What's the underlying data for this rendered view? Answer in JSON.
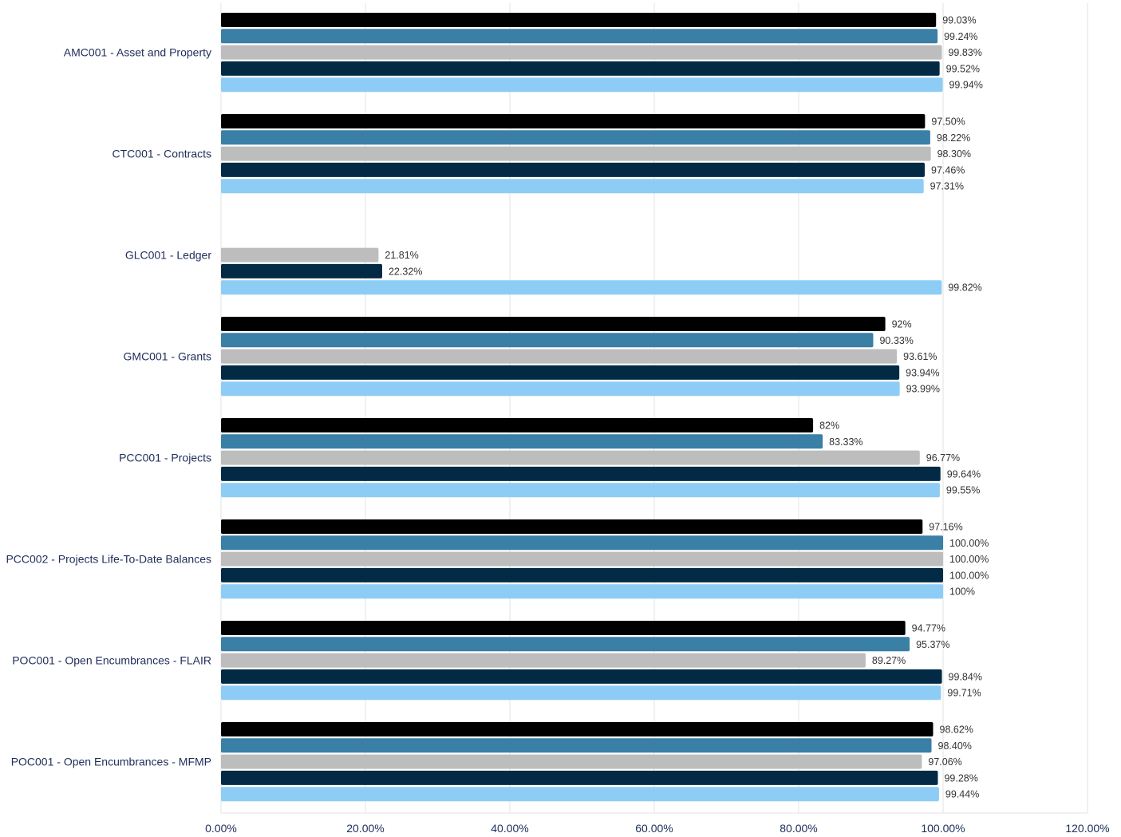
{
  "chart_data": {
    "type": "bar",
    "orientation": "horizontal",
    "categories": [
      "AMC001 - Asset and Property",
      "CTC001 - Contracts",
      "GLC001 - Ledger",
      "GMC001 - Grants",
      "PCC001 - Projects",
      "PCC002 - Projects Life-To-Date Balances",
      "POC001 - Open Encumbrances - FLAIR",
      "POC001 - Open Encumbrances - MFMP"
    ],
    "series": [
      {
        "color": "#000000",
        "values": [
          99.03,
          97.5,
          null,
          92,
          82,
          97.16,
          94.77,
          98.62
        ],
        "labels": [
          "99.03%",
          "97.50%",
          "",
          "92%",
          "82%",
          "97.16%",
          "94.77%",
          "98.62%"
        ]
      },
      {
        "color": "#3a7fa6",
        "values": [
          99.24,
          98.22,
          null,
          90.33,
          83.33,
          100.0,
          95.37,
          98.4
        ],
        "labels": [
          "99.24%",
          "98.22%",
          "",
          "90.33%",
          "83.33%",
          "100.00%",
          "95.37%",
          "98.40%"
        ]
      },
      {
        "color": "#bdbdbd",
        "values": [
          99.83,
          98.3,
          21.81,
          93.61,
          96.77,
          100.0,
          89.27,
          97.06
        ],
        "labels": [
          "99.83%",
          "98.30%",
          "21.81%",
          "93.61%",
          "96.77%",
          "100.00%",
          "89.27%",
          "97.06%"
        ]
      },
      {
        "color": "#032a45",
        "values": [
          99.52,
          97.46,
          22.32,
          93.94,
          99.64,
          100.0,
          99.84,
          99.28
        ],
        "labels": [
          "99.52%",
          "97.46%",
          "22.32%",
          "93.94%",
          "99.64%",
          "100.00%",
          "99.84%",
          "99.28%"
        ]
      },
      {
        "color": "#8dcdf5",
        "values": [
          99.94,
          97.31,
          99.82,
          93.99,
          99.55,
          100,
          99.71,
          99.44
        ],
        "labels": [
          "99.94%",
          "97.31%",
          "99.82%",
          "93.99%",
          "99.55%",
          "100%",
          "99.71%",
          "99.44%"
        ]
      }
    ],
    "xlim": [
      0,
      120
    ],
    "xticks": [
      0,
      20,
      40,
      60,
      80,
      100,
      120
    ],
    "xtick_labels": [
      "0.00%",
      "20.00%",
      "40.00%",
      "60.00%",
      "80.00%",
      "100.00%",
      "120.00%"
    ],
    "grid": true,
    "legend": "none"
  }
}
